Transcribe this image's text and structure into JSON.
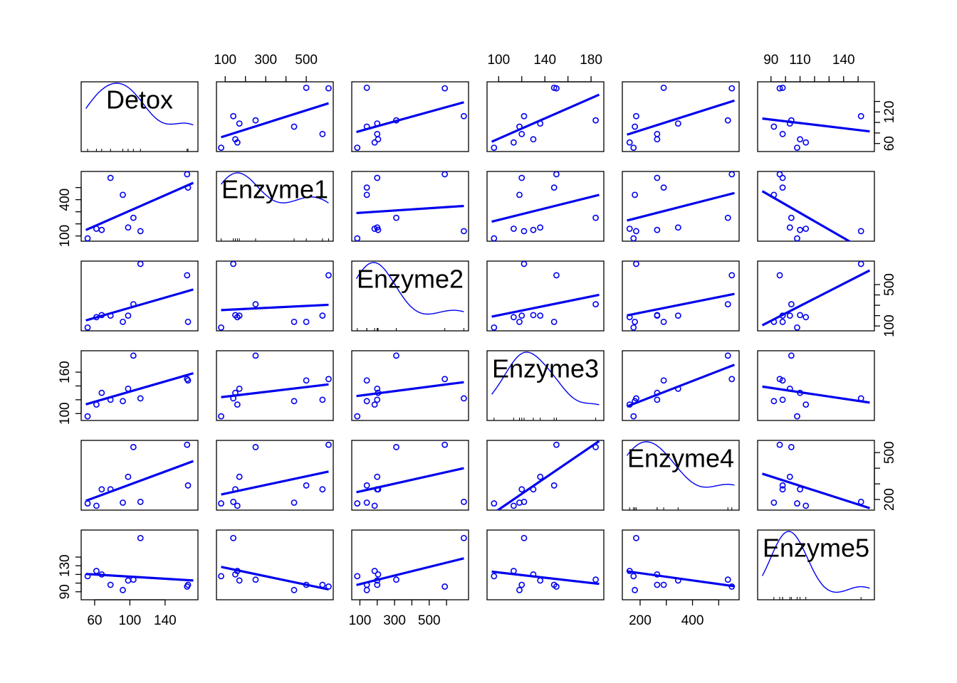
{
  "chart_data": {
    "type": "scatter",
    "subtype": "scatterplot-matrix",
    "title": "",
    "colors": {
      "points": "#0000ee",
      "fit": "#0000ee",
      "density": "#0000ee",
      "frame": "#000000"
    },
    "diagonal": "density",
    "fit_line": "linear regression",
    "variables": [
      "Detox",
      "Enzyme1",
      "Enzyme2",
      "Enzyme3",
      "Enzyme4",
      "Enzyme5"
    ],
    "ranges": {
      "Detox": [
        50,
        172
      ],
      "Enzyme1": [
        80,
        610
      ],
      "Enzyme2": [
        80,
        700
      ],
      "Enzyme3": [
        94,
        187
      ],
      "Enzyme4": [
        150,
        560
      ],
      "Enzyme5": [
        84,
        158
      ]
    },
    "ticks": {
      "Detox": [
        60,
        100,
        140
      ],
      "Enzyme1": [
        100,
        200,
        300,
        400,
        500
      ],
      "Enzyme2": [
        100,
        200,
        300,
        400,
        500,
        600
      ],
      "Enzyme3": [
        100,
        120,
        140,
        160,
        180
      ],
      "Enzyme4": [
        200,
        300,
        400,
        500
      ],
      "Enzyme5": [
        90,
        100,
        110,
        120,
        130,
        140,
        150
      ]
    },
    "tick_labels": {
      "Detox": [
        "60",
        "100",
        "140"
      ],
      "Enzyme1": [
        "100",
        "",
        "300",
        "",
        "500"
      ],
      "Enzyme2": [
        "100",
        "",
        "300",
        "",
        "500",
        ""
      ],
      "Enzyme3": [
        "100",
        "",
        "140",
        "",
        "180"
      ],
      "Enzyme4": [
        "200",
        "",
        "400",
        ""
      ],
      "Enzyme5": [
        "90",
        "",
        "110",
        "",
        "",
        "140",
        ""
      ]
    },
    "y_ticks": {
      "Detox": [
        60,
        80,
        100,
        120,
        140
      ],
      "Enzyme1": [
        100,
        200,
        300,
        400,
        500
      ],
      "Enzyme2": [
        100,
        200,
        300,
        400,
        500
      ],
      "Enzyme3": [
        100,
        120,
        140,
        160
      ],
      "Enzyme4": [
        200,
        300,
        400,
        500
      ],
      "Enzyme5": [
        90,
        100,
        110,
        120,
        130
      ]
    },
    "y_tick_labels": {
      "Detox": [
        "60",
        "",
        "",
        "120",
        ""
      ],
      "Enzyme1": [
        "100",
        "",
        "",
        "400",
        ""
      ],
      "Enzyme2": [
        "100",
        "",
        "",
        "",
        "500"
      ],
      "Enzyme3": [
        "100",
        "",
        "",
        "160"
      ],
      "Enzyme4": [
        "200",
        "",
        "",
        "500"
      ],
      "Enzyme5": [
        "90",
        "",
        "",
        "130"
      ]
    },
    "observations": [
      {
        "Detox": 52,
        "Enzyme1": 80,
        "Enzyme2": 85,
        "Enzyme3": 96,
        "Enzyme4": 175,
        "Enzyme5": 108
      },
      {
        "Detox": 62,
        "Enzyme1": 160,
        "Enzyme2": 185,
        "Enzyme3": 113,
        "Enzyme4": 160,
        "Enzyme5": 114
      },
      {
        "Detox": 68,
        "Enzyme1": 150,
        "Enzyme2": 205,
        "Enzyme3": 130,
        "Enzyme4": 265,
        "Enzyme5": 110
      },
      {
        "Detox": 78,
        "Enzyme1": 580,
        "Enzyme2": 200,
        "Enzyme3": 120,
        "Enzyme4": 265,
        "Enzyme5": 98
      },
      {
        "Detox": 92,
        "Enzyme1": 440,
        "Enzyme2": 140,
        "Enzyme3": 118,
        "Enzyme4": 180,
        "Enzyme5": 92
      },
      {
        "Detox": 98,
        "Enzyme1": 170,
        "Enzyme2": 200,
        "Enzyme3": 136,
        "Enzyme4": 345,
        "Enzyme5": 103
      },
      {
        "Detox": 104,
        "Enzyme1": 250,
        "Enzyme2": 310,
        "Enzyme3": 184,
        "Enzyme4": 535,
        "Enzyme5": 104
      },
      {
        "Detox": 112,
        "Enzyme1": 140,
        "Enzyme2": 700,
        "Enzyme3": 122,
        "Enzyme4": 185,
        "Enzyme5": 152
      },
      {
        "Detox": 165,
        "Enzyme1": 610,
        "Enzyme2": 590,
        "Enzyme3": 150,
        "Enzyme4": 550,
        "Enzyme5": 96
      },
      {
        "Detox": 166,
        "Enzyme1": 500,
        "Enzyme2": 140,
        "Enzyme3": 148,
        "Enzyme4": 290,
        "Enzyme5": 98
      }
    ]
  }
}
